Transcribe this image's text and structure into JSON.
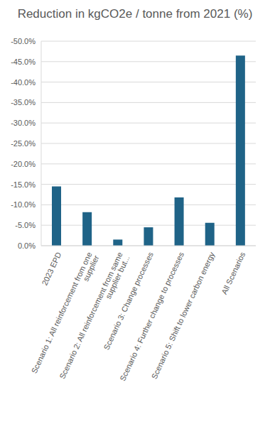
{
  "chart_data": {
    "type": "bar",
    "title": "Reduction in kgCO2e / tonne from 2021 (%)",
    "categories": [
      "2023 EPD",
      "Scenario 1: All reinforcement from one supplier",
      "Scenario 2: All reinforcement from same supplier but...",
      "Scenario 3: Change processes",
      "Scenario 4: Further change to processes",
      "Scenario 5: Shift to lower carbon energy",
      "All Scenarios"
    ],
    "values": [
      -14.5,
      -8.2,
      -1.5,
      -4.5,
      -11.8,
      -5.6,
      -46.5
    ],
    "color": "#1f6387",
    "ylim": [
      0,
      -50
    ],
    "yticks": [
      {
        "value": 0,
        "label": "0.0%"
      },
      {
        "value": -5,
        "label": "-5.0%"
      },
      {
        "value": -10,
        "label": "-10.0%"
      },
      {
        "value": -15,
        "label": "-15.0%"
      },
      {
        "value": -20,
        "label": "-20.0%"
      },
      {
        "value": -25,
        "label": "-25.0%"
      },
      {
        "value": -30,
        "label": "-30.0%"
      },
      {
        "value": -35,
        "label": "-35.0%"
      },
      {
        "value": -40,
        "label": "-40.0%"
      },
      {
        "value": -45,
        "label": "-45.0%"
      },
      {
        "value": -50,
        "label": "-50.0%"
      }
    ],
    "grid": true
  }
}
